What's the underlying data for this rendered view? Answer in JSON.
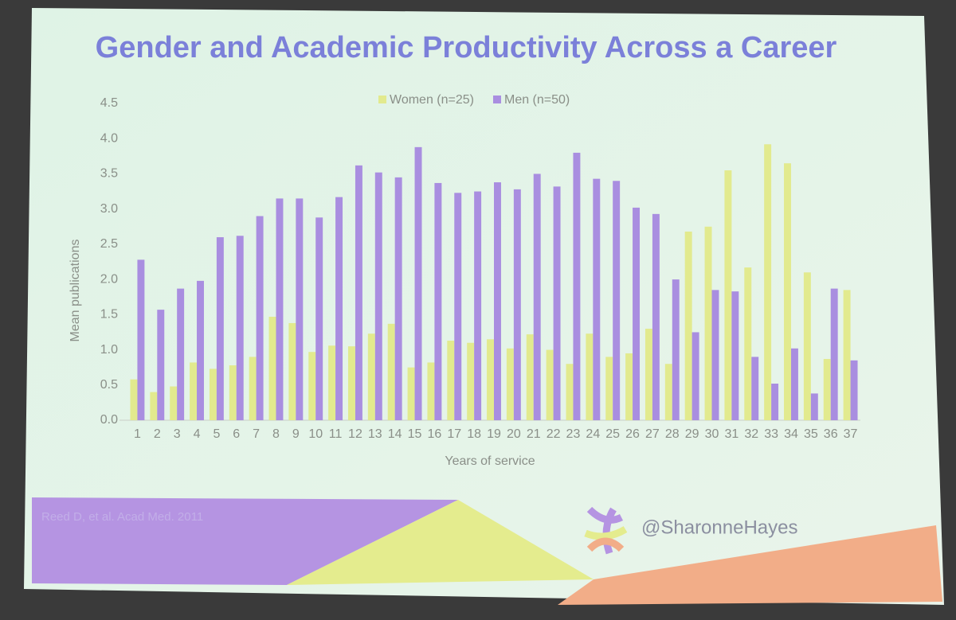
{
  "chart_data": {
    "type": "bar",
    "title": "Gender and Academic Productivity Across a Career",
    "y_label": "Mean publications",
    "x_label": "Years of service",
    "categories": [
      "1",
      "2",
      "3",
      "4",
      "5",
      "6",
      "7",
      "8",
      "9",
      "10",
      "11",
      "12",
      "13",
      "14",
      "15",
      "16",
      "17",
      "18",
      "19",
      "20",
      "21",
      "22",
      "23",
      "24",
      "25",
      "26",
      "27",
      "28",
      "29",
      "30",
      "31",
      "32",
      "33",
      "34",
      "35",
      "36",
      "37"
    ],
    "series": [
      {
        "name": "Women (n=25)",
        "color": "#e2ea8e",
        "values": [
          0.58,
          0.4,
          0.48,
          0.82,
          0.73,
          0.78,
          0.9,
          1.47,
          1.38,
          0.97,
          1.06,
          1.05,
          1.23,
          1.37,
          0.75,
          0.82,
          1.13,
          1.1,
          1.15,
          1.02,
          1.22,
          1.0,
          0.8,
          1.23,
          0.9,
          0.95,
          1.3,
          0.8,
          2.68,
          2.75,
          3.55,
          2.17,
          3.92,
          3.65,
          2.1,
          0.87,
          1.85
        ]
      },
      {
        "name": "Men (n=50)",
        "color": "#a98ee0",
        "values": [
          2.28,
          1.57,
          1.87,
          1.98,
          2.6,
          2.62,
          2.9,
          3.15,
          3.15,
          2.88,
          3.17,
          3.62,
          3.52,
          3.45,
          3.88,
          3.37,
          3.23,
          3.25,
          3.38,
          3.28,
          3.5,
          3.32,
          3.8,
          3.43,
          3.4,
          3.02,
          2.93,
          2.0,
          1.25,
          1.85,
          1.83,
          0.9,
          0.52,
          1.02,
          0.38,
          1.87,
          0.85
        ]
      }
    ],
    "ylim": [
      0,
      4.5
    ],
    "yticks": [
      {
        "value": 0,
        "label": "0.0"
      },
      {
        "value": 0.5,
        "label": "0.5"
      },
      {
        "value": 1,
        "label": "1.0"
      },
      {
        "value": 1.5,
        "label": "1.5"
      },
      {
        "value": 2,
        "label": "2.0"
      },
      {
        "value": 2.5,
        "label": "2.5"
      },
      {
        "value": 3,
        "label": "3.0"
      },
      {
        "value": 3.5,
        "label": "3.5"
      },
      {
        "value": 4,
        "label": "4.0"
      },
      {
        "value": 4.5,
        "label": "4.5"
      }
    ],
    "grid": false,
    "legend": "top",
    "citation": "Reed D, et al. Acad Med. 2011",
    "handle": "@SharonneHayes"
  }
}
